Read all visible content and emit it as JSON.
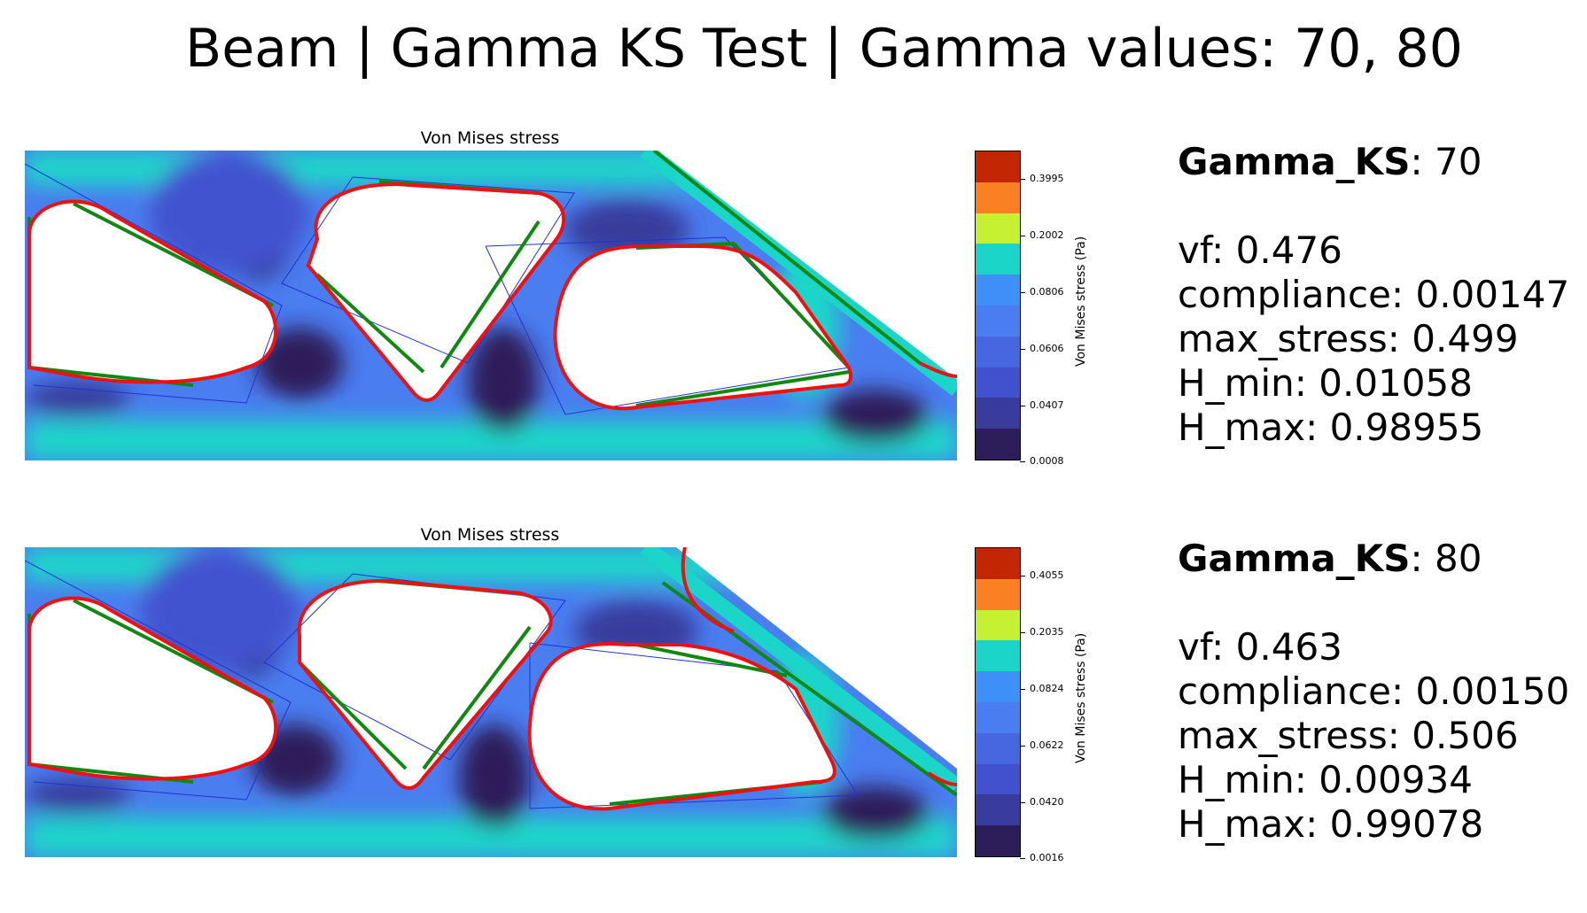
{
  "suptitle": "Beam | Gamma KS Test | Gamma values: 70, 80",
  "panels": [
    {
      "title": "Von Mises stress",
      "colorbar_label": "Von Mises stress (Pa)",
      "colorbar_ticks": [
        "0.3995",
        "0.2002",
        "0.0806",
        "0.0606",
        "0.0407",
        "0.0008"
      ],
      "gamma_label": "Gamma_KS",
      "gamma_value": ": 70",
      "vf": "vf: 0.476",
      "compliance": "compliance: 0.00147",
      "max_stress": "max_stress: 0.499",
      "h_min": "H_min: 0.01058",
      "h_max": "H_max: 0.98955"
    },
    {
      "title": "Von Mises stress",
      "colorbar_label": "Von Mises stress (Pa)",
      "colorbar_ticks": [
        "0.4055",
        "0.2035",
        "0.0824",
        "0.0622",
        "0.0420",
        "0.0016"
      ],
      "gamma_label": "Gamma_KS",
      "gamma_value": ": 80",
      "vf": "vf: 0.463",
      "compliance": "compliance: 0.00150",
      "max_stress": "max_stress: 0.506",
      "h_min": "H_min: 0.00934",
      "h_max": "H_max: 0.99078"
    }
  ],
  "chart_data": {
    "type": "heatmap",
    "colormap": [
      "#2d1e5a",
      "#393c9c",
      "#4252cf",
      "#4667e0",
      "#4a7df0",
      "#3f8ff9",
      "#1bd5c9",
      "#c6f032",
      "#fb8021",
      "#c32602"
    ],
    "series": [
      {
        "name": "Gamma_KS: 70",
        "vf": 0.476,
        "compliance": 0.00147,
        "max_stress": 0.499,
        "h_min": 0.01058,
        "h_max": 0.98955
      },
      {
        "name": "Gamma_KS: 80",
        "vf": 0.463,
        "compliance": 0.0015,
        "max_stress": 0.506,
        "h_min": 0.00934,
        "h_max": 0.99078
      }
    ]
  }
}
